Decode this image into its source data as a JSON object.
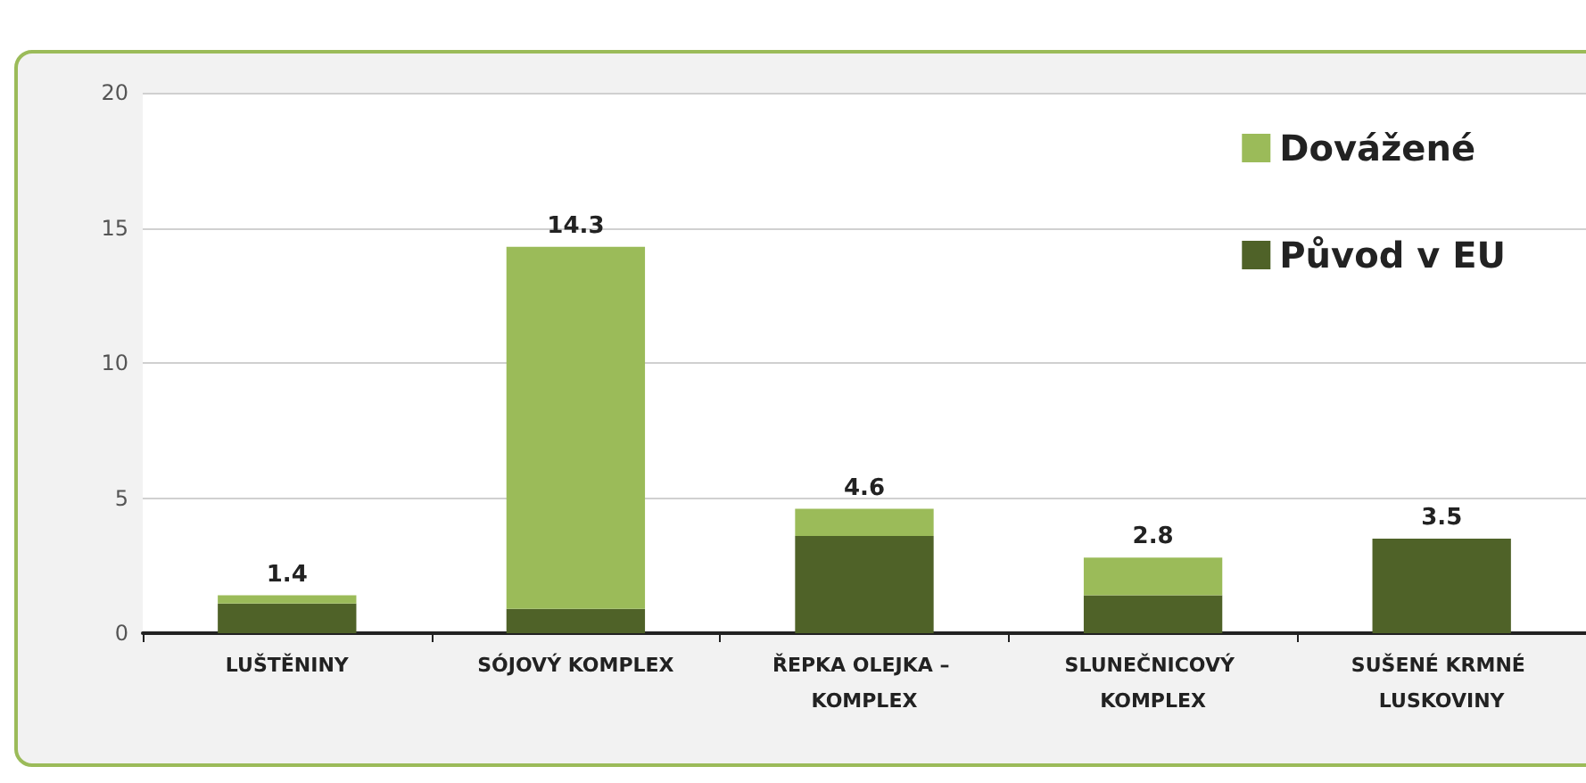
{
  "chart_data": {
    "type": "bar",
    "stacked": true,
    "categories": [
      "LUŠTĚNINY",
      "SÓJOVÝ KOMPLEX",
      "ŘEPKA OLEJKA – KOMPLEX",
      "SLUNEČNICOVÝ KOMPLEX",
      "SUŠENÉ KRMNÉ LUSKOVINY"
    ],
    "series": [
      {
        "name": "Původ v EU",
        "color": "#4f6228",
        "values": [
          1.1,
          0.9,
          3.6,
          1.4,
          3.5
        ]
      },
      {
        "name": "Dovážené",
        "color": "#9bbb59",
        "values": [
          0.3,
          13.4,
          1.0,
          1.4,
          0
        ]
      }
    ],
    "totals": [
      "1.4",
      "14.3",
      "4.6",
      "2.8",
      "3.5"
    ],
    "ylim": [
      0,
      20
    ],
    "yticks": [
      0,
      5,
      10,
      15,
      20
    ],
    "grid": "y",
    "legend": "top right"
  }
}
